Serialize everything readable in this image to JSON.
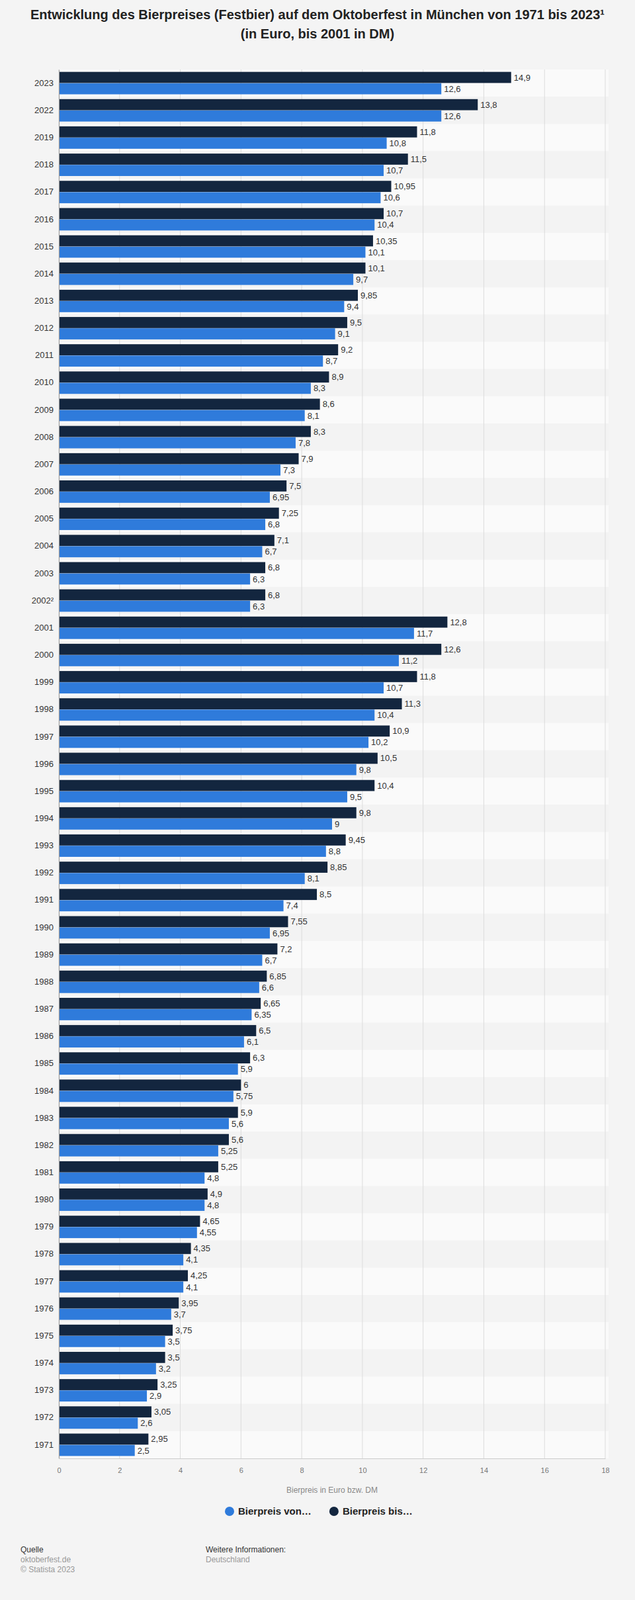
{
  "chart_data": {
    "type": "bar",
    "orientation": "horizontal",
    "title": "Entwicklung des Bierpreises (Festbier) auf dem Oktoberfest in München von 1971 bis 2023¹ (in Euro, bis 2001 in DM)",
    "xlabel": "Bierpreis in Euro bzw. DM",
    "categories": [
      "2023",
      "2022",
      "2019",
      "2018",
      "2017",
      "2016",
      "2015",
      "2014",
      "2013",
      "2012",
      "2011",
      "2010",
      "2009",
      "2008",
      "2007",
      "2006",
      "2005",
      "2004",
      "2003",
      "2002²",
      "2001",
      "2000",
      "1999",
      "1998",
      "1997",
      "1996",
      "1995",
      "1994",
      "1993",
      "1992",
      "1991",
      "1990",
      "1989",
      "1988",
      "1987",
      "1986",
      "1985",
      "1984",
      "1983",
      "1982",
      "1981",
      "1980",
      "1979",
      "1978",
      "1977",
      "1976",
      "1975",
      "1974",
      "1973",
      "1972",
      "1971"
    ],
    "series": [
      {
        "name": "Bierpreis von…",
        "color": "#2f7bdb",
        "values": [
          12.6,
          12.6,
          10.8,
          10.7,
          10.6,
          10.4,
          10.1,
          9.7,
          9.4,
          9.1,
          8.7,
          8.3,
          8.1,
          7.8,
          7.3,
          6.95,
          6.8,
          6.7,
          6.3,
          6.3,
          11.7,
          11.2,
          10.7,
          10.4,
          10.2,
          9.8,
          9.5,
          9,
          8.8,
          8.1,
          7.4,
          6.95,
          6.7,
          6.6,
          6.35,
          6.1,
          5.9,
          5.75,
          5.6,
          5.25,
          4.8,
          4.8,
          4.55,
          4.1,
          4.1,
          3.7,
          3.5,
          3.2,
          2.9,
          2.6,
          2.5
        ],
        "value_labels": [
          "12,6",
          "12,6",
          "10,8",
          "10,7",
          "10,6",
          "10,4",
          "10,1",
          "9,7",
          "9,4",
          "9,1",
          "8,7",
          "8,3",
          "8,1",
          "7,8",
          "7,3",
          "6,95",
          "6,8",
          "6,7",
          "6,3",
          "6,3",
          "11,7",
          "11,2",
          "10,7",
          "10,4",
          "10,2",
          "9,8",
          "9,5",
          "9",
          "8,8",
          "8,1",
          "7,4",
          "6,95",
          "6,7",
          "6,6",
          "6,35",
          "6,1",
          "5,9",
          "5,75",
          "5,6",
          "5,25",
          "4,8",
          "4,8",
          "4,55",
          "4,1",
          "4,1",
          "3,7",
          "3,5",
          "3,2",
          "2,9",
          "2,6",
          "2,5"
        ]
      },
      {
        "name": "Bierpreis bis…",
        "color": "#13263f",
        "values": [
          14.9,
          13.8,
          11.8,
          11.5,
          10.95,
          10.7,
          10.35,
          10.1,
          9.85,
          9.5,
          9.2,
          8.9,
          8.6,
          8.3,
          7.9,
          7.5,
          7.25,
          7.1,
          6.8,
          6.8,
          12.8,
          12.6,
          11.8,
          11.3,
          10.9,
          10.5,
          10.4,
          9.8,
          9.45,
          8.85,
          8.5,
          7.55,
          7.2,
          6.85,
          6.65,
          6.5,
          6.3,
          6,
          5.9,
          5.6,
          5.25,
          4.9,
          4.65,
          4.35,
          4.25,
          3.95,
          3.75,
          3.5,
          3.25,
          3.05,
          2.95
        ],
        "value_labels": [
          "14,9",
          "13,8",
          "11,8",
          "11,5",
          "10,95",
          "10,7",
          "10,35",
          "10,1",
          "9,85",
          "9,5",
          "9,2",
          "8,9",
          "8,6",
          "8,3",
          "7,9",
          "7,5",
          "7,25",
          "7,1",
          "6,8",
          "6,8",
          "12,8",
          "12,6",
          "11,8",
          "11,3",
          "10,9",
          "10,5",
          "10,4",
          "9,8",
          "9,45",
          "8,85",
          "8,5",
          "7,55",
          "7,2",
          "6,85",
          "6,65",
          "6,5",
          "6,3",
          "6",
          "5,9",
          "5,6",
          "5,25",
          "4,9",
          "4,65",
          "4,35",
          "4,25",
          "3,95",
          "3,75",
          "3,5",
          "3,25",
          "3,05",
          "2,95"
        ]
      }
    ],
    "xlim": [
      0,
      18
    ],
    "xticks": [
      0,
      2,
      4,
      6,
      8,
      10,
      12,
      14,
      16,
      18
    ],
    "grid": true,
    "data_labels": true,
    "legend": "bottom",
    "source_label": "Quelle",
    "source": "oktoberfest.de",
    "copyright": "© Statista 2023",
    "info_label": "Weitere Informationen:",
    "info": "Deutschland"
  }
}
